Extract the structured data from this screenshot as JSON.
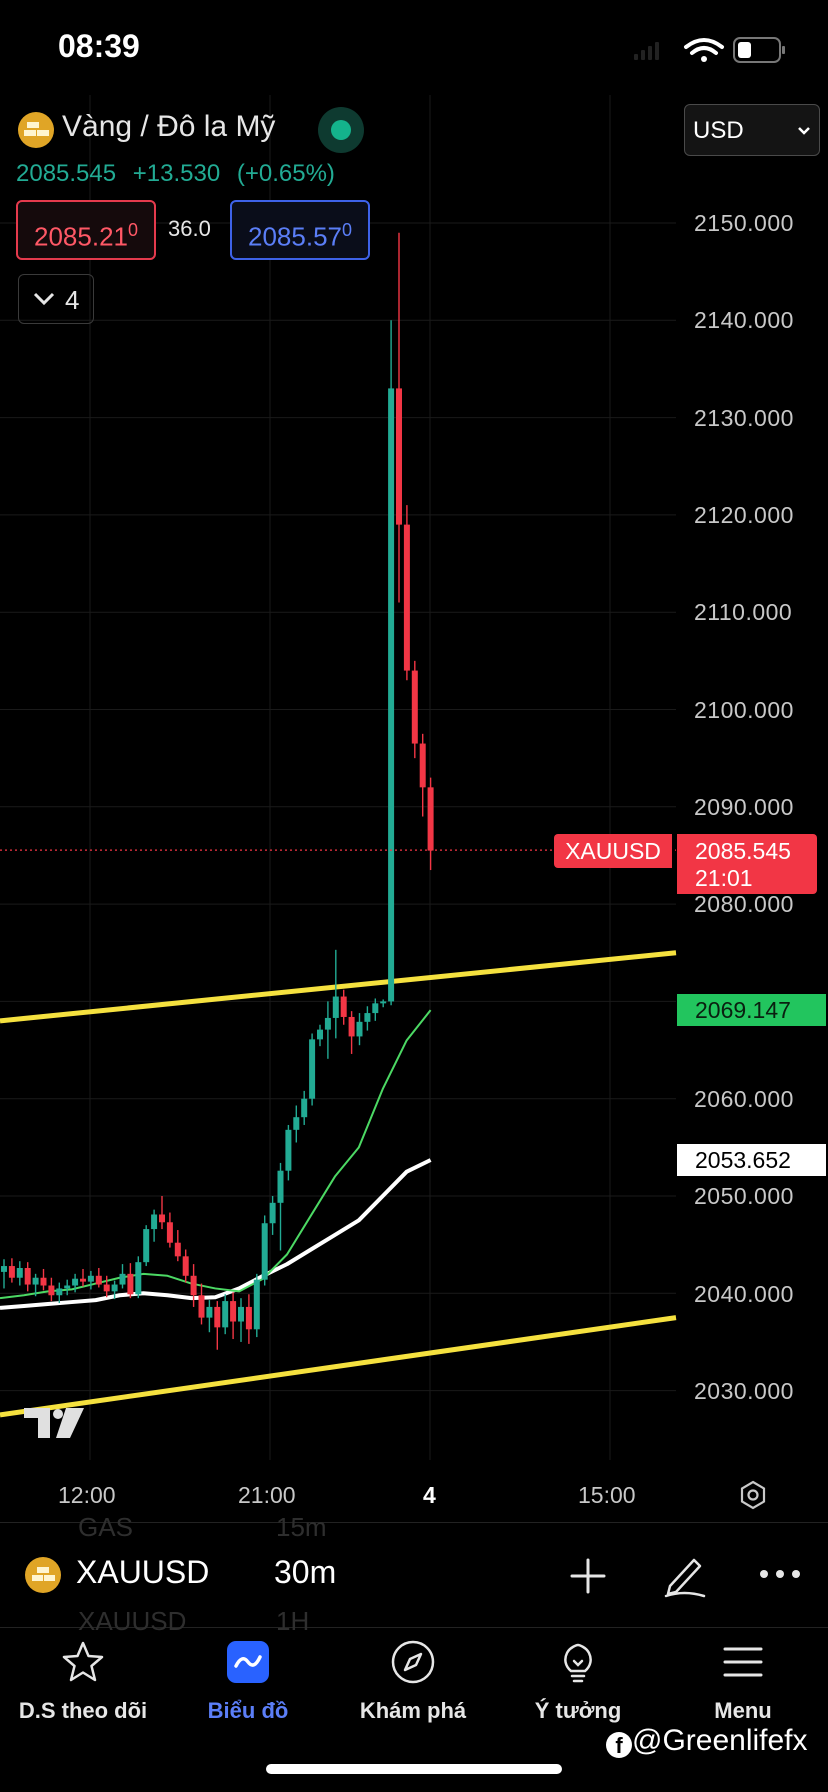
{
  "status": {
    "time": "08:39"
  },
  "header": {
    "title": "Vàng / Đô la Mỹ",
    "last": "2085.545",
    "change": "+13.530",
    "change_pct": "(+0.65%)",
    "bid_main": "2085.21",
    "bid_sup": "0",
    "spread": "36.0",
    "ask_main": "2085.57",
    "ask_sup": "0",
    "indicators_count": "4",
    "currency": "USD"
  },
  "chart_data": {
    "type": "candlestick",
    "symbol": "XAUUSD",
    "interval": "30m",
    "yticks": [
      "2150.000",
      "2140.000",
      "2130.000",
      "2120.000",
      "2110.000",
      "2100.000",
      "2090.000",
      "2080.000",
      "2060.000",
      "2050.000",
      "2040.000",
      "2030.000"
    ],
    "ylim": [
      2023,
      2159
    ],
    "xticks": [
      "12:00",
      "21:00",
      "4",
      "15:00"
    ],
    "last_price_tag": {
      "symbol": "XAUUSD",
      "price": "2085.545",
      "countdown": "21:01"
    },
    "ma_fast_tag": "2069.147",
    "ma_slow_tag": "2053.652",
    "candles": [
      {
        "o": 2042.2,
        "h": 2043.5,
        "l": 2040.5,
        "c": 2042.8
      },
      {
        "o": 2042.8,
        "h": 2043.6,
        "l": 2041.1,
        "c": 2041.6
      },
      {
        "o": 2041.6,
        "h": 2043.3,
        "l": 2040.8,
        "c": 2042.6
      },
      {
        "o": 2042.6,
        "h": 2043.2,
        "l": 2040.2,
        "c": 2040.9
      },
      {
        "o": 2040.9,
        "h": 2042.0,
        "l": 2039.7,
        "c": 2041.6
      },
      {
        "o": 2041.6,
        "h": 2042.5,
        "l": 2040.3,
        "c": 2040.8
      },
      {
        "o": 2040.8,
        "h": 2041.6,
        "l": 2039.2,
        "c": 2039.8
      },
      {
        "o": 2039.8,
        "h": 2041.1,
        "l": 2039.0,
        "c": 2040.5
      },
      {
        "o": 2040.5,
        "h": 2041.4,
        "l": 2039.8,
        "c": 2040.8
      },
      {
        "o": 2040.8,
        "h": 2042.0,
        "l": 2040.1,
        "c": 2041.5
      },
      {
        "o": 2041.5,
        "h": 2042.5,
        "l": 2040.7,
        "c": 2041.2
      },
      {
        "o": 2041.2,
        "h": 2042.3,
        "l": 2040.4,
        "c": 2041.8
      },
      {
        "o": 2041.8,
        "h": 2042.6,
        "l": 2040.6,
        "c": 2040.9
      },
      {
        "o": 2040.9,
        "h": 2041.8,
        "l": 2039.6,
        "c": 2040.2
      },
      {
        "o": 2040.2,
        "h": 2041.3,
        "l": 2039.4,
        "c": 2040.9
      },
      {
        "o": 2040.9,
        "h": 2043.0,
        "l": 2040.5,
        "c": 2042.0
      },
      {
        "o": 2042.0,
        "h": 2043.1,
        "l": 2039.5,
        "c": 2039.9
      },
      {
        "o": 2039.9,
        "h": 2043.8,
        "l": 2039.5,
        "c": 2043.2
      },
      {
        "o": 2043.2,
        "h": 2047.0,
        "l": 2042.8,
        "c": 2046.6
      },
      {
        "o": 2046.6,
        "h": 2048.6,
        "l": 2045.3,
        "c": 2048.1
      },
      {
        "o": 2048.1,
        "h": 2050.0,
        "l": 2046.6,
        "c": 2047.3
      },
      {
        "o": 2047.3,
        "h": 2048.3,
        "l": 2044.7,
        "c": 2045.2
      },
      {
        "o": 2045.2,
        "h": 2046.5,
        "l": 2043.3,
        "c": 2043.8
      },
      {
        "o": 2043.8,
        "h": 2044.5,
        "l": 2041.1,
        "c": 2041.8
      },
      {
        "o": 2041.8,
        "h": 2043.0,
        "l": 2038.6,
        "c": 2039.8
      },
      {
        "o": 2039.8,
        "h": 2041.0,
        "l": 2036.8,
        "c": 2037.5
      },
      {
        "o": 2037.5,
        "h": 2039.3,
        "l": 2036.0,
        "c": 2038.6
      },
      {
        "o": 2038.6,
        "h": 2039.2,
        "l": 2034.2,
        "c": 2036.5
      },
      {
        "o": 2036.5,
        "h": 2039.9,
        "l": 2035.8,
        "c": 2039.2
      },
      {
        "o": 2039.2,
        "h": 2040.1,
        "l": 2035.3,
        "c": 2037.1
      },
      {
        "o": 2037.1,
        "h": 2039.5,
        "l": 2035.0,
        "c": 2038.6
      },
      {
        "o": 2038.6,
        "h": 2039.9,
        "l": 2034.8,
        "c": 2036.3
      },
      {
        "o": 2036.3,
        "h": 2042.0,
        "l": 2035.5,
        "c": 2041.4
      },
      {
        "o": 2041.4,
        "h": 2048.0,
        "l": 2040.8,
        "c": 2047.2
      },
      {
        "o": 2047.2,
        "h": 2050.0,
        "l": 2046.0,
        "c": 2049.3
      },
      {
        "o": 2049.3,
        "h": 2053.4,
        "l": 2044.4,
        "c": 2052.6
      },
      {
        "o": 2052.6,
        "h": 2057.3,
        "l": 2051.6,
        "c": 2056.8
      },
      {
        "o": 2056.8,
        "h": 2059.3,
        "l": 2055.5,
        "c": 2058.1
      },
      {
        "o": 2058.1,
        "h": 2060.8,
        "l": 2057.3,
        "c": 2060.0
      },
      {
        "o": 2060.0,
        "h": 2066.7,
        "l": 2059.3,
        "c": 2066.1
      },
      {
        "o": 2066.1,
        "h": 2067.6,
        "l": 2065.4,
        "c": 2067.1
      },
      {
        "o": 2067.1,
        "h": 2070.0,
        "l": 2064.1,
        "c": 2068.3
      },
      {
        "o": 2068.3,
        "h": 2075.3,
        "l": 2066.2,
        "c": 2070.5
      },
      {
        "o": 2070.5,
        "h": 2071.2,
        "l": 2067.6,
        "c": 2068.4
      },
      {
        "o": 2068.4,
        "h": 2069.0,
        "l": 2064.6,
        "c": 2066.4
      },
      {
        "o": 2066.4,
        "h": 2068.8,
        "l": 2065.5,
        "c": 2067.9
      },
      {
        "o": 2067.9,
        "h": 2069.5,
        "l": 2067.0,
        "c": 2068.8
      },
      {
        "o": 2068.8,
        "h": 2070.3,
        "l": 2068.0,
        "c": 2069.8
      },
      {
        "o": 2069.8,
        "h": 2070.2,
        "l": 2069.4,
        "c": 2070.0
      },
      {
        "o": 2070.0,
        "h": 2140.0,
        "l": 2069.6,
        "c": 2133.0
      },
      {
        "o": 2133.0,
        "h": 2149.0,
        "l": 2111.0,
        "c": 2119.0
      },
      {
        "o": 2119.0,
        "h": 2121.0,
        "l": 2103.0,
        "c": 2104.0
      },
      {
        "o": 2104.0,
        "h": 2105.0,
        "l": 2095.0,
        "c": 2096.5
      },
      {
        "o": 2096.5,
        "h": 2097.5,
        "l": 2089.0,
        "c": 2092.0
      },
      {
        "o": 2092.0,
        "h": 2093.0,
        "l": 2083.5,
        "c": 2085.5
      }
    ],
    "ma_fast": [
      2039.5,
      2039.8,
      2040.2,
      2040.4,
      2041.0,
      2041.6,
      2042.0,
      2041.8,
      2041.0,
      2040.5,
      2040.2,
      2041.5,
      2044.0,
      2048.0,
      2052.0,
      2055.0,
      2061.0,
      2066.0,
      2069.1
    ],
    "ma_slow": [
      2038.5,
      2038.7,
      2038.9,
      2039.1,
      2039.3,
      2039.8,
      2040.0,
      2039.8,
      2039.5,
      2039.6,
      2040.5,
      2041.8,
      2043.0,
      2044.5,
      2046.0,
      2047.5,
      2050.0,
      2052.5,
      2053.7
    ],
    "trendlines": [
      {
        "x0": 0,
        "y0": 2068.0,
        "x1": 1,
        "y1": 2075.0,
        "color": "#f5e13f"
      },
      {
        "x0": 0,
        "y0": 2027.5,
        "x1": 1,
        "y1": 2037.5,
        "color": "#f5e13f"
      }
    ],
    "colors": {
      "up": "#22ab94",
      "down": "#f23645",
      "ma_fast": "#4cd964",
      "ma_slow": "#ffffff"
    }
  },
  "toolbar": {
    "symbol": "XAUUSD",
    "interval": "30m",
    "ghost_symbol_1": "GAS",
    "ghost_interval_1": "15m",
    "ghost_symbol_2": "XAUUSD",
    "ghost_interval_2": "1H"
  },
  "tabs": [
    {
      "label": "D.S theo dõi",
      "icon": "star-icon"
    },
    {
      "label": "Biểu đồ",
      "icon": "chart-icon",
      "active": true
    },
    {
      "label": "Khám phá",
      "icon": "compass-icon"
    },
    {
      "label": "Ý tưởng",
      "icon": "lightbulb-icon"
    },
    {
      "label": "Menu",
      "icon": "hamburger-icon"
    }
  ],
  "watermark": "@Greenlifefx"
}
